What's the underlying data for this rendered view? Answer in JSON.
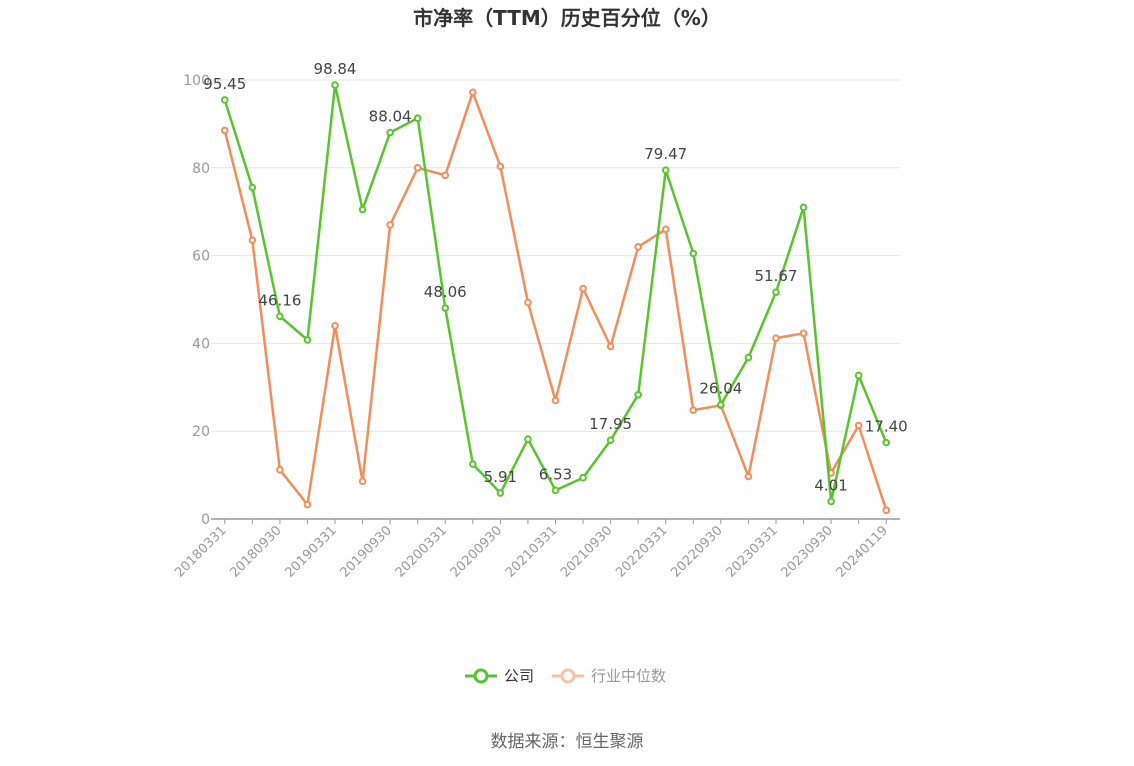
{
  "chart_data": {
    "type": "line",
    "title": "市净率（TTM）历史百分位（%）",
    "source": "数据来源：恒生聚源",
    "ylim": [
      0,
      100
    ],
    "yticks": [
      0,
      20,
      40,
      60,
      80,
      100
    ],
    "x": [
      "20180331",
      "20180630",
      "20180930",
      "20181231",
      "20190331",
      "20190630",
      "20190930",
      "20191231",
      "20200331",
      "20200630",
      "20200930",
      "20201231",
      "20210331",
      "20210630",
      "20210930",
      "20211231",
      "20220331",
      "20220630",
      "20220930",
      "20221231",
      "20230331",
      "20230630",
      "20230930",
      "20231231",
      "20240119"
    ],
    "xtick_labels": [
      "20180331",
      "20180930",
      "20190331",
      "20190930",
      "20200331",
      "20200930",
      "20210331",
      "20210930",
      "20220331",
      "20220930",
      "20230331",
      "20230930",
      "20240119"
    ],
    "grid": true,
    "legend_position": "bottom",
    "series": [
      {
        "name": "公司",
        "color": "#5ac42f",
        "values": [
          95.45,
          75.5,
          46.16,
          40.8,
          98.84,
          70.5,
          88.04,
          91.3,
          48.06,
          12.5,
          5.91,
          18.2,
          6.53,
          9.4,
          17.95,
          28.3,
          79.47,
          60.5,
          26.04,
          36.8,
          51.67,
          71.0,
          4.01,
          32.7,
          17.4
        ],
        "labels": {
          "0": "95.45",
          "2": "46.16",
          "4": "98.84",
          "6": "88.04",
          "8": "48.06",
          "10": "5.91",
          "12": "6.53",
          "14": "17.95",
          "16": "79.47",
          "18": "26.04",
          "20": "51.67",
          "22": "4.01",
          "24": "17.40"
        }
      },
      {
        "name": "行业中位数",
        "color": "#f28e5b",
        "values": [
          88.5,
          63.5,
          11.2,
          3.3,
          44.0,
          8.6,
          67.0,
          80.0,
          78.3,
          97.2,
          80.3,
          49.3,
          27.0,
          52.5,
          39.3,
          62.0,
          66.0,
          24.8,
          25.9,
          9.7,
          41.2,
          42.3,
          10.5,
          21.3,
          2.0
        ]
      }
    ]
  }
}
